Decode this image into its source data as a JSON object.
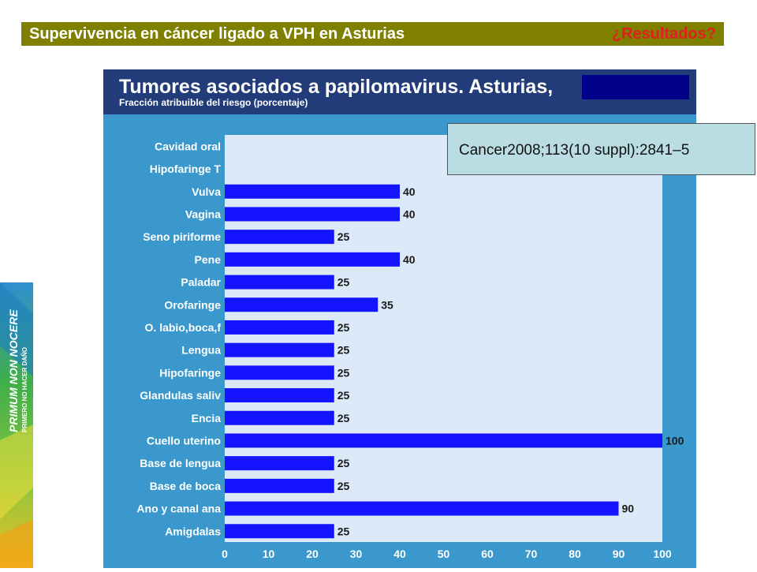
{
  "slide": {
    "title": "Supervivencia en cáncer ligado a VPH en Asturias",
    "header_right": "¿Resultados?",
    "reference": "Cancer2008;113(10 suppl):2841–5"
  },
  "banner": {
    "logo_text": "PRIMUM NON NOCERE",
    "logo_subtext": "PRIMERO NO HACER DAÑO"
  },
  "colors": {
    "header_bar": "#7f7f00",
    "chart_frame": "#3a98cc",
    "chart_header": "#223c7a",
    "plot_bg": "#dce9f8",
    "bar": "#1414ff",
    "redaction": "#00008b"
  },
  "chart_data": {
    "type": "bar",
    "orientation": "horizontal",
    "title": "Tumores asociados a papilomavirus. Asturias,",
    "subtitle": "Fracción atribuible del riesgo (porcentaje)",
    "categories": [
      "Cavidad oral",
      "Hipofaringe T",
      "Vulva",
      "Vagina",
      "Seno piriforme",
      "Pene",
      "Paladar",
      "Orofaringe",
      "O. labio,boca,f",
      "Lengua",
      "Hipofaringe",
      "Glandulas saliv",
      "Encia",
      "Cuello uterino",
      "Base de lengua",
      "Base de boca",
      "Ano y canal ana",
      "Amigdalas"
    ],
    "values": [
      null,
      null,
      40,
      40,
      25,
      40,
      25,
      35,
      25,
      25,
      25,
      25,
      25,
      100,
      25,
      25,
      90,
      25
    ],
    "value_labels": [
      "",
      "",
      "40",
      "40",
      "25",
      "40",
      "25",
      "35",
      "25",
      "25",
      "25",
      "25",
      "25",
      "100",
      "25",
      "25",
      "90",
      "25"
    ],
    "xlim": [
      0,
      100
    ],
    "x_ticks": [
      "0",
      "10",
      "20",
      "30",
      "40",
      "50",
      "60",
      "70",
      "80",
      "90",
      "100"
    ],
    "grid": false,
    "legend": "none"
  }
}
